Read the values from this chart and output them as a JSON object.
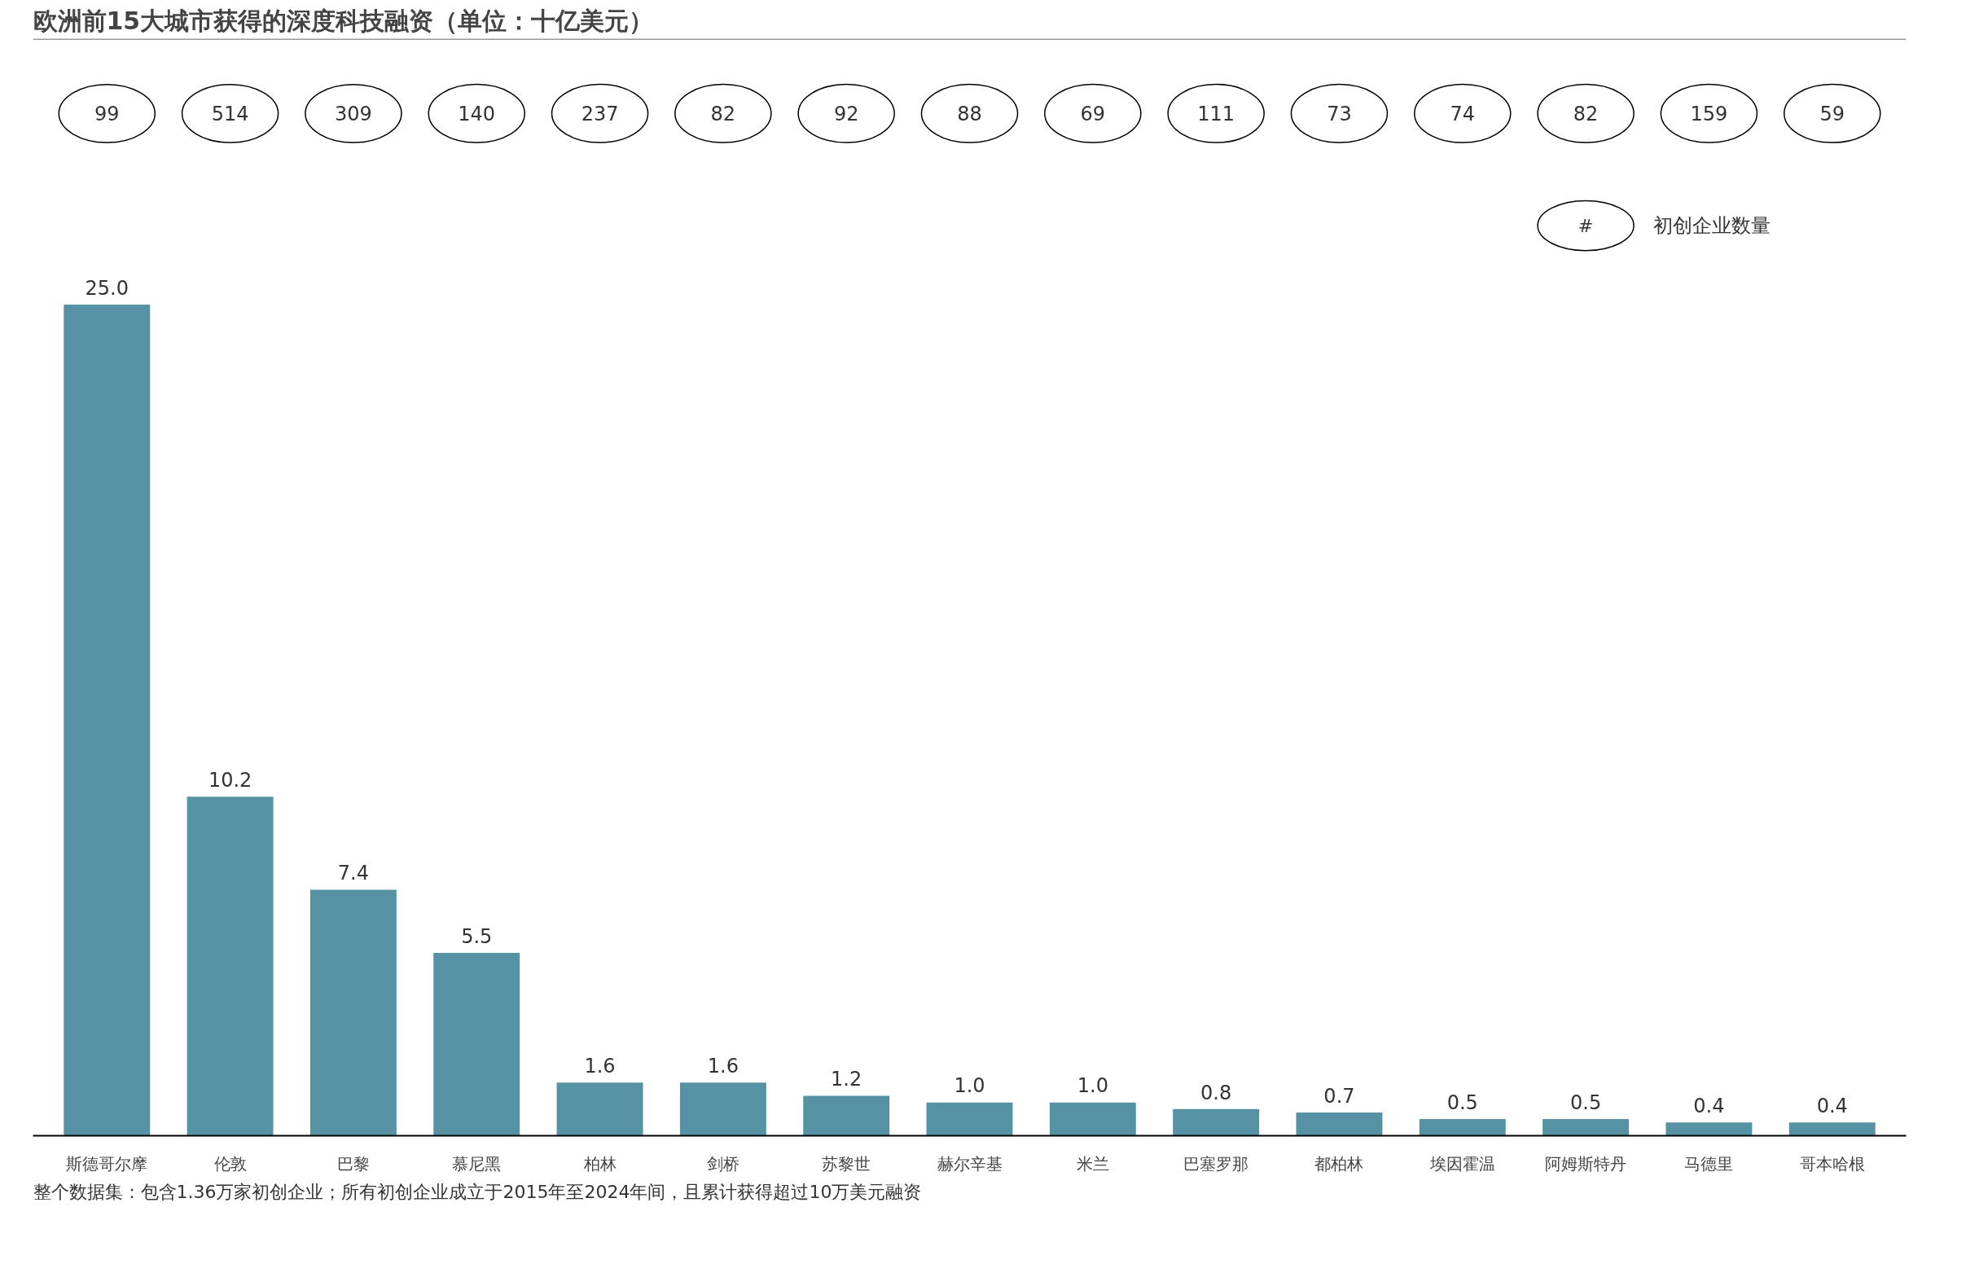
{
  "chart_data": {
    "type": "bar",
    "title": "欧洲前15大城市获得的深度科技融资（单位：十亿美元）",
    "categories": [
      "斯德哥尔摩",
      "伦敦",
      "巴黎",
      "慕尼黑",
      "柏林",
      "剑桥",
      "苏黎世",
      "赫尔辛基",
      "米兰",
      "巴塞罗那",
      "都柏林",
      "埃因霍温",
      "阿姆斯特丹",
      "马德里",
      "哥本哈根"
    ],
    "values": [
      25.0,
      10.2,
      7.4,
      5.5,
      1.6,
      1.6,
      1.2,
      1.0,
      1.0,
      0.8,
      0.7,
      0.5,
      0.5,
      0.4,
      0.4
    ],
    "value_labels": [
      "25.0",
      "10.2",
      "7.4",
      "5.5",
      "1.6",
      "1.6",
      "1.2",
      "1.0",
      "1.0",
      "0.8",
      "0.7",
      "0.5",
      "0.5",
      "0.4",
      "0.4"
    ],
    "color": "#5592a3",
    "tick_labels": "x",
    "annotations": [
      "#",
      "初创企业数量",
      "整个数据集：包含1.36万家初创企业；所有初创企业成立于2015年至2024年间，且累计获得超过10万美元融资",
      "99",
      "514",
      "309",
      "140",
      "237",
      "82",
      "92",
      "88",
      "69",
      "111",
      "73",
      "74",
      "82",
      "159",
      "59"
    ]
  }
}
